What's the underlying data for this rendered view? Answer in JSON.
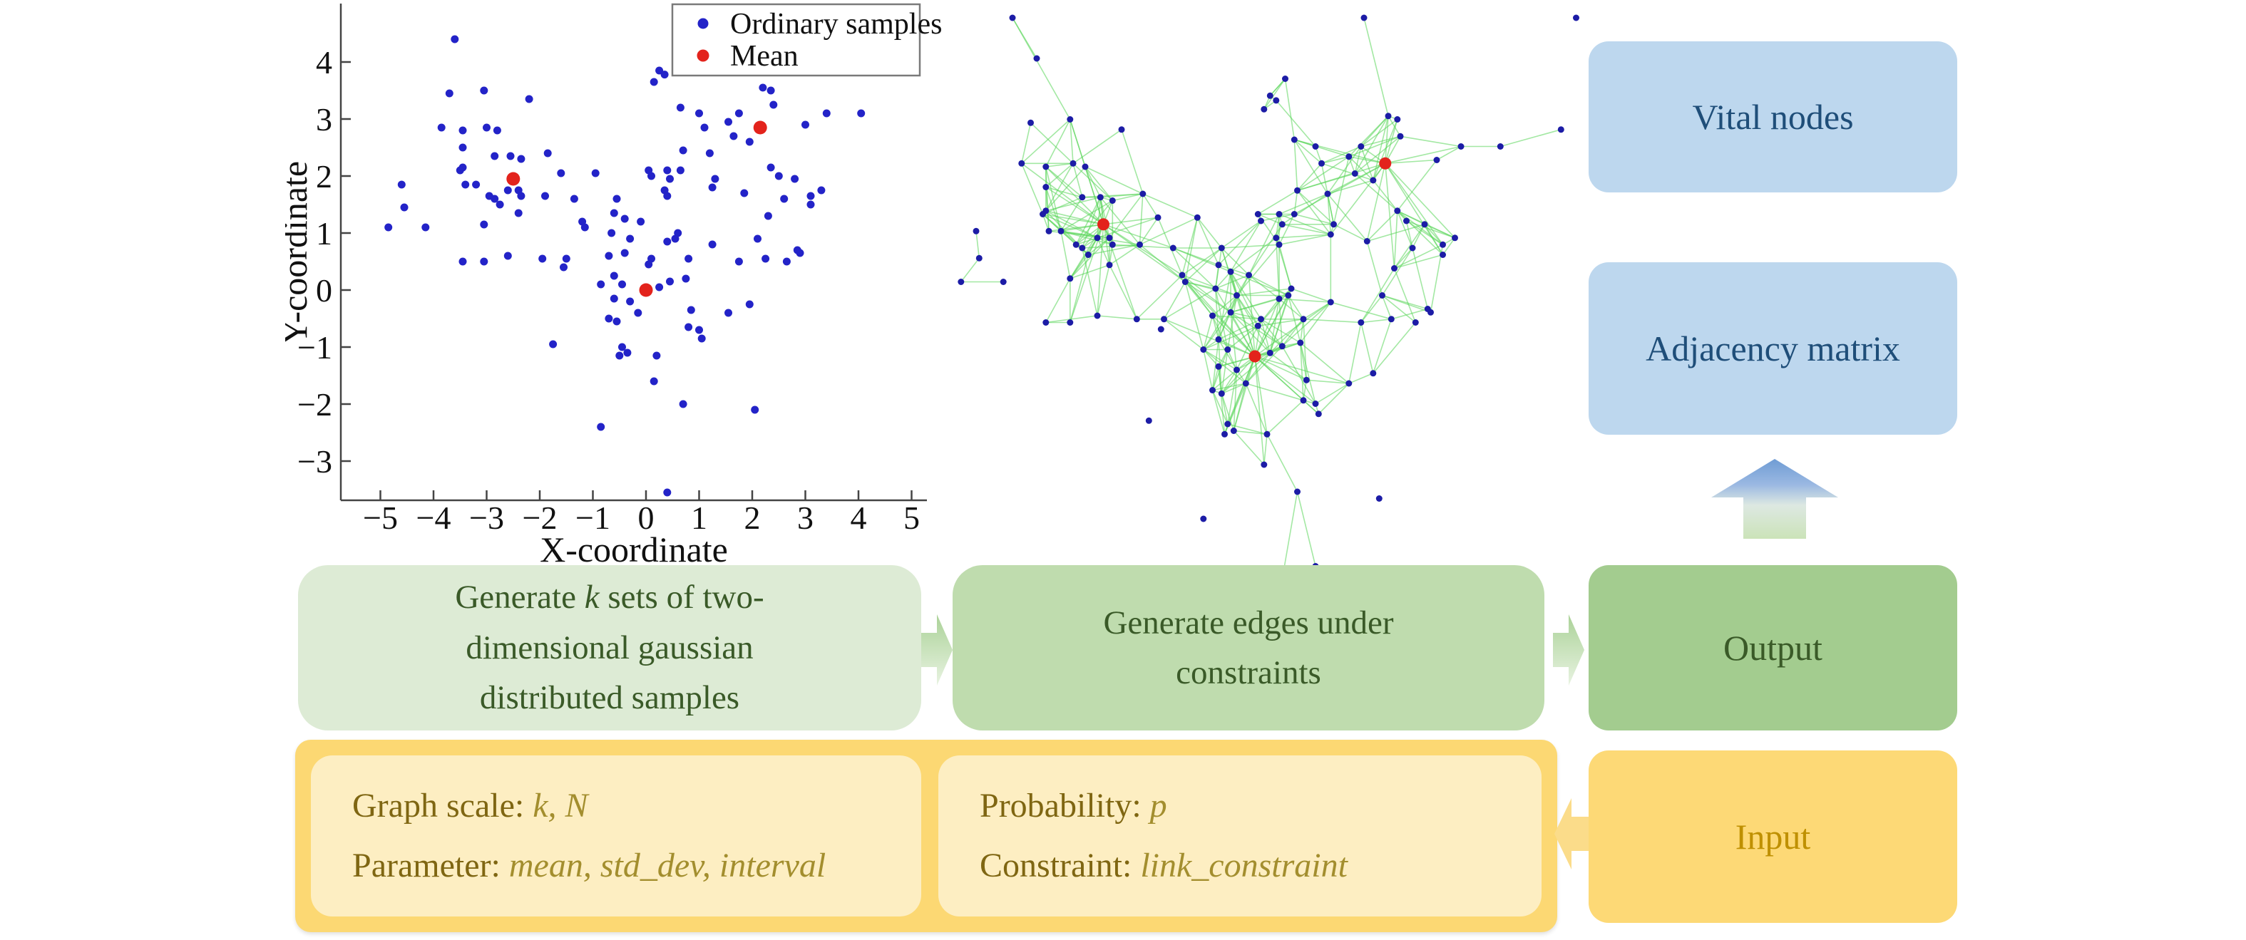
{
  "figure": {
    "description": "Constrained random geometric graph generation pipeline"
  },
  "chart_data": [
    {
      "type": "scatter",
      "xlabel": "X-coordinate",
      "ylabel": "Y-coordinate",
      "x_ticks": [
        -5,
        -4,
        -3,
        -2,
        -1,
        0,
        1,
        2,
        3,
        4,
        5
      ],
      "y_ticks": [
        -3,
        -2,
        -1,
        0,
        1,
        2,
        3,
        4
      ],
      "xlim": [
        -5.7,
        5.3
      ],
      "ylim": [
        -3.7,
        5.0
      ],
      "grid": false,
      "legend": [
        "Ordinary samples",
        "Mean"
      ],
      "legend_position": "upper right",
      "means": [
        [
          -2.5,
          1.95
        ],
        [
          0.0,
          0.0
        ],
        [
          2.15,
          2.85
        ]
      ],
      "points": [
        [
          -3.6,
          4.4
        ],
        [
          0.25,
          3.85
        ],
        [
          0.35,
          3.78
        ],
        [
          0.15,
          3.65
        ],
        [
          2.2,
          3.55
        ],
        [
          2.35,
          3.5
        ],
        [
          -3.7,
          3.45
        ],
        [
          -3.05,
          3.5
        ],
        [
          -2.2,
          3.35
        ],
        [
          2.4,
          3.25
        ],
        [
          0.65,
          3.2
        ],
        [
          1.0,
          3.1
        ],
        [
          1.75,
          3.1
        ],
        [
          3.4,
          3.1
        ],
        [
          4.05,
          3.1
        ],
        [
          1.55,
          2.95
        ],
        [
          1.1,
          2.85
        ],
        [
          3.0,
          2.9
        ],
        [
          -3.85,
          2.85
        ],
        [
          -3.45,
          2.8
        ],
        [
          -3.0,
          2.85
        ],
        [
          -2.8,
          2.8
        ],
        [
          1.65,
          2.7
        ],
        [
          0.7,
          2.45
        ],
        [
          1.2,
          2.4
        ],
        [
          1.95,
          2.6
        ],
        [
          -3.45,
          2.5
        ],
        [
          -2.85,
          2.35
        ],
        [
          -2.55,
          2.35
        ],
        [
          -2.35,
          2.3
        ],
        [
          -1.85,
          2.4
        ],
        [
          -1.6,
          2.05
        ],
        [
          -0.95,
          2.05
        ],
        [
          -3.45,
          2.15
        ],
        [
          -3.5,
          2.1
        ],
        [
          0.05,
          2.1
        ],
        [
          0.1,
          2.0
        ],
        [
          0.4,
          2.1
        ],
        [
          0.45,
          1.95
        ],
        [
          0.65,
          2.1
        ],
        [
          -3.4,
          1.85
        ],
        [
          -3.2,
          1.85
        ],
        [
          -4.6,
          1.85
        ],
        [
          1.3,
          1.95
        ],
        [
          2.35,
          2.15
        ],
        [
          2.5,
          2.0
        ],
        [
          2.8,
          1.95
        ],
        [
          1.25,
          1.8
        ],
        [
          -2.6,
          1.75
        ],
        [
          -2.4,
          1.75
        ],
        [
          -2.35,
          1.65
        ],
        [
          -2.95,
          1.65
        ],
        [
          -2.85,
          1.6
        ],
        [
          0.35,
          1.75
        ],
        [
          0.4,
          1.65
        ],
        [
          -0.55,
          1.6
        ],
        [
          1.85,
          1.7
        ],
        [
          3.1,
          1.65
        ],
        [
          3.3,
          1.75
        ],
        [
          -1.9,
          1.65
        ],
        [
          -1.35,
          1.6
        ],
        [
          -2.75,
          1.5
        ],
        [
          -4.55,
          1.45
        ],
        [
          2.6,
          1.6
        ],
        [
          3.1,
          1.5
        ],
        [
          2.3,
          1.3
        ],
        [
          -2.4,
          1.35
        ],
        [
          -0.6,
          1.35
        ],
        [
          -0.4,
          1.25
        ],
        [
          -0.1,
          1.2
        ],
        [
          -1.2,
          1.2
        ],
        [
          -1.15,
          1.1
        ],
        [
          -0.65,
          1.0
        ],
        [
          -0.3,
          0.9
        ],
        [
          0.6,
          1.0
        ],
        [
          0.55,
          0.9
        ],
        [
          0.4,
          0.85
        ],
        [
          1.25,
          0.8
        ],
        [
          2.1,
          0.9
        ],
        [
          2.85,
          0.7
        ],
        [
          2.9,
          0.65
        ],
        [
          -4.85,
          1.1
        ],
        [
          -4.15,
          1.1
        ],
        [
          -3.05,
          1.15
        ],
        [
          -3.45,
          0.5
        ],
        [
          -3.05,
          0.5
        ],
        [
          -2.6,
          0.6
        ],
        [
          -1.95,
          0.55
        ],
        [
          -1.5,
          0.55
        ],
        [
          -1.55,
          0.4
        ],
        [
          -0.7,
          0.6
        ],
        [
          -0.4,
          0.65
        ],
        [
          0.1,
          0.55
        ],
        [
          0.05,
          0.45
        ],
        [
          0.8,
          0.55
        ],
        [
          1.75,
          0.5
        ],
        [
          2.25,
          0.55
        ],
        [
          2.65,
          0.5
        ],
        [
          0.75,
          0.2
        ],
        [
          0.45,
          0.15
        ],
        [
          -0.6,
          0.25
        ],
        [
          -0.85,
          0.1
        ],
        [
          -0.45,
          0.1
        ],
        [
          0.25,
          0.05
        ],
        [
          -0.3,
          -0.2
        ],
        [
          -0.6,
          -0.15
        ],
        [
          -0.15,
          -0.4
        ],
        [
          -0.7,
          -0.5
        ],
        [
          -0.55,
          -0.55
        ],
        [
          0.85,
          -0.35
        ],
        [
          0.8,
          -0.65
        ],
        [
          1.0,
          -0.7
        ],
        [
          1.55,
          -0.4
        ],
        [
          1.95,
          -0.25
        ],
        [
          1.05,
          -0.85
        ],
        [
          -1.75,
          -0.95
        ],
        [
          -0.45,
          -1.0
        ],
        [
          -0.5,
          -1.15
        ],
        [
          -0.35,
          -1.1
        ],
        [
          0.2,
          -1.15
        ],
        [
          0.15,
          -1.6
        ],
        [
          0.7,
          -2.0
        ],
        [
          2.05,
          -2.1
        ],
        [
          -0.85,
          -2.4
        ],
        [
          0.4,
          -3.55
        ]
      ]
    },
    {
      "type": "network",
      "description": "Same gaussian samples as graph nodes; green edges generated under constraints; red nodes are cluster means",
      "nodes_source": "scatter points + extra_nodes",
      "extra_nodes": [
        [
          -4.0,
          5.0
        ],
        [
          0.5,
          4.1
        ],
        [
          1.8,
          5.0
        ],
        [
          5.3,
          5.0
        ],
        [
          5.05,
          3.35
        ],
        [
          1.0,
          -3.1
        ],
        [
          2.6,
          -3.2
        ],
        [
          -0.8,
          -3.6
        ]
      ],
      "extra_edges": [
        [
          [
            -4.0,
            5.0
          ],
          [
            -3.05,
            3.5
          ]
        ],
        [
          [
            1.8,
            5.0
          ],
          [
            2.2,
            3.55
          ]
        ],
        [
          [
            0.5,
            4.1
          ],
          [
            0.25,
            3.85
          ]
        ],
        [
          [
            5.05,
            3.35
          ],
          [
            4.05,
            3.1
          ]
        ],
        [
          [
            0.7,
            -2.0
          ],
          [
            1.0,
            -3.1
          ]
        ],
        [
          [
            0.4,
            -3.55
          ],
          [
            0.7,
            -2.0
          ]
        ]
      ],
      "edge_rule": {
        "max_dist": 1.05,
        "p": 0.55,
        "mean_max_dist": 1.7,
        "mean_p": 0.8
      }
    }
  ],
  "flow": {
    "vital": {
      "label": "Vital nodes"
    },
    "adjacency": {
      "label": "Adjacency matrix"
    },
    "output": {
      "label": "Output"
    },
    "input": {
      "label": "Input"
    },
    "step1": {
      "pre": "Generate ",
      "var": "k",
      "post": " sets of two-dimensional gaussian distributed samples"
    },
    "step2": {
      "label": "Generate edges under constraints"
    },
    "params1": {
      "l1_label": "Graph scale: ",
      "l1_vars": "k, N",
      "l2_label": "Parameter: ",
      "l2_vars": "mean, std_dev, interval"
    },
    "params2": {
      "l1_label": "Probability: ",
      "l1_vars": "p",
      "l2_label": "Constraint: ",
      "l2_vars": "link_constraint"
    }
  },
  "colors": {
    "sample_blue": "#2323c8",
    "mean_red": "#e3231c",
    "edge_green": "#57d657",
    "node_blue": "#1c1ca6",
    "box_blue": "#bdd7ee",
    "text_blue": "#1f4e79",
    "green_light": "#ddebd5",
    "green_mid": "#bfdcae",
    "green_dark": "#a3cc8f",
    "text_green": "#3a5a28",
    "yellow_outer": "#fcd873",
    "yellow_inner": "#fdeec2",
    "yellow_input": "#fdd976",
    "text_gold": "#bf9000",
    "text_olive": "#7f6612",
    "text_olive_var": "#a38e2e",
    "arrow_green_top": "#abd298",
    "arrow_green_bot": "#e8f3e1",
    "arrow_up_top": "#6f9cd4",
    "arrow_up_bot": "#cbe3b8",
    "arrow_yellow": "#fbdc8a"
  }
}
